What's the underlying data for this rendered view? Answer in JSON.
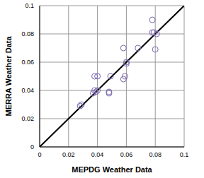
{
  "chart_data": {
    "type": "scatter",
    "x_label": "MEPDG Weather Data",
    "y_label": "MERRA Weather Data",
    "x": [
      0.028,
      0.029,
      0.037,
      0.038,
      0.038,
      0.04,
      0.039,
      0.04,
      0.048,
      0.048,
      0.049,
      0.058,
      0.058,
      0.059,
      0.06,
      0.06,
      0.068,
      0.078,
      0.078,
      0.079,
      0.08,
      0.081
    ],
    "values": [
      0.029,
      0.03,
      0.038,
      0.04,
      0.05,
      0.05,
      0.039,
      0.04,
      0.039,
      0.038,
      0.05,
      0.07,
      0.048,
      0.05,
      0.059,
      0.06,
      0.07,
      0.09,
      0.081,
      0.081,
      0.069,
      0.08
    ],
    "color": "#7b68b0",
    "marker": "circle",
    "xlim": [
      0,
      0.1
    ],
    "ylim": [
      0,
      0.1
    ],
    "xticks": [
      0,
      0.02,
      0.04,
      0.06,
      0.08,
      0.1
    ],
    "yticks": [
      0,
      0.02,
      0.04,
      0.06,
      0.08,
      0.1
    ],
    "grid": true
  }
}
